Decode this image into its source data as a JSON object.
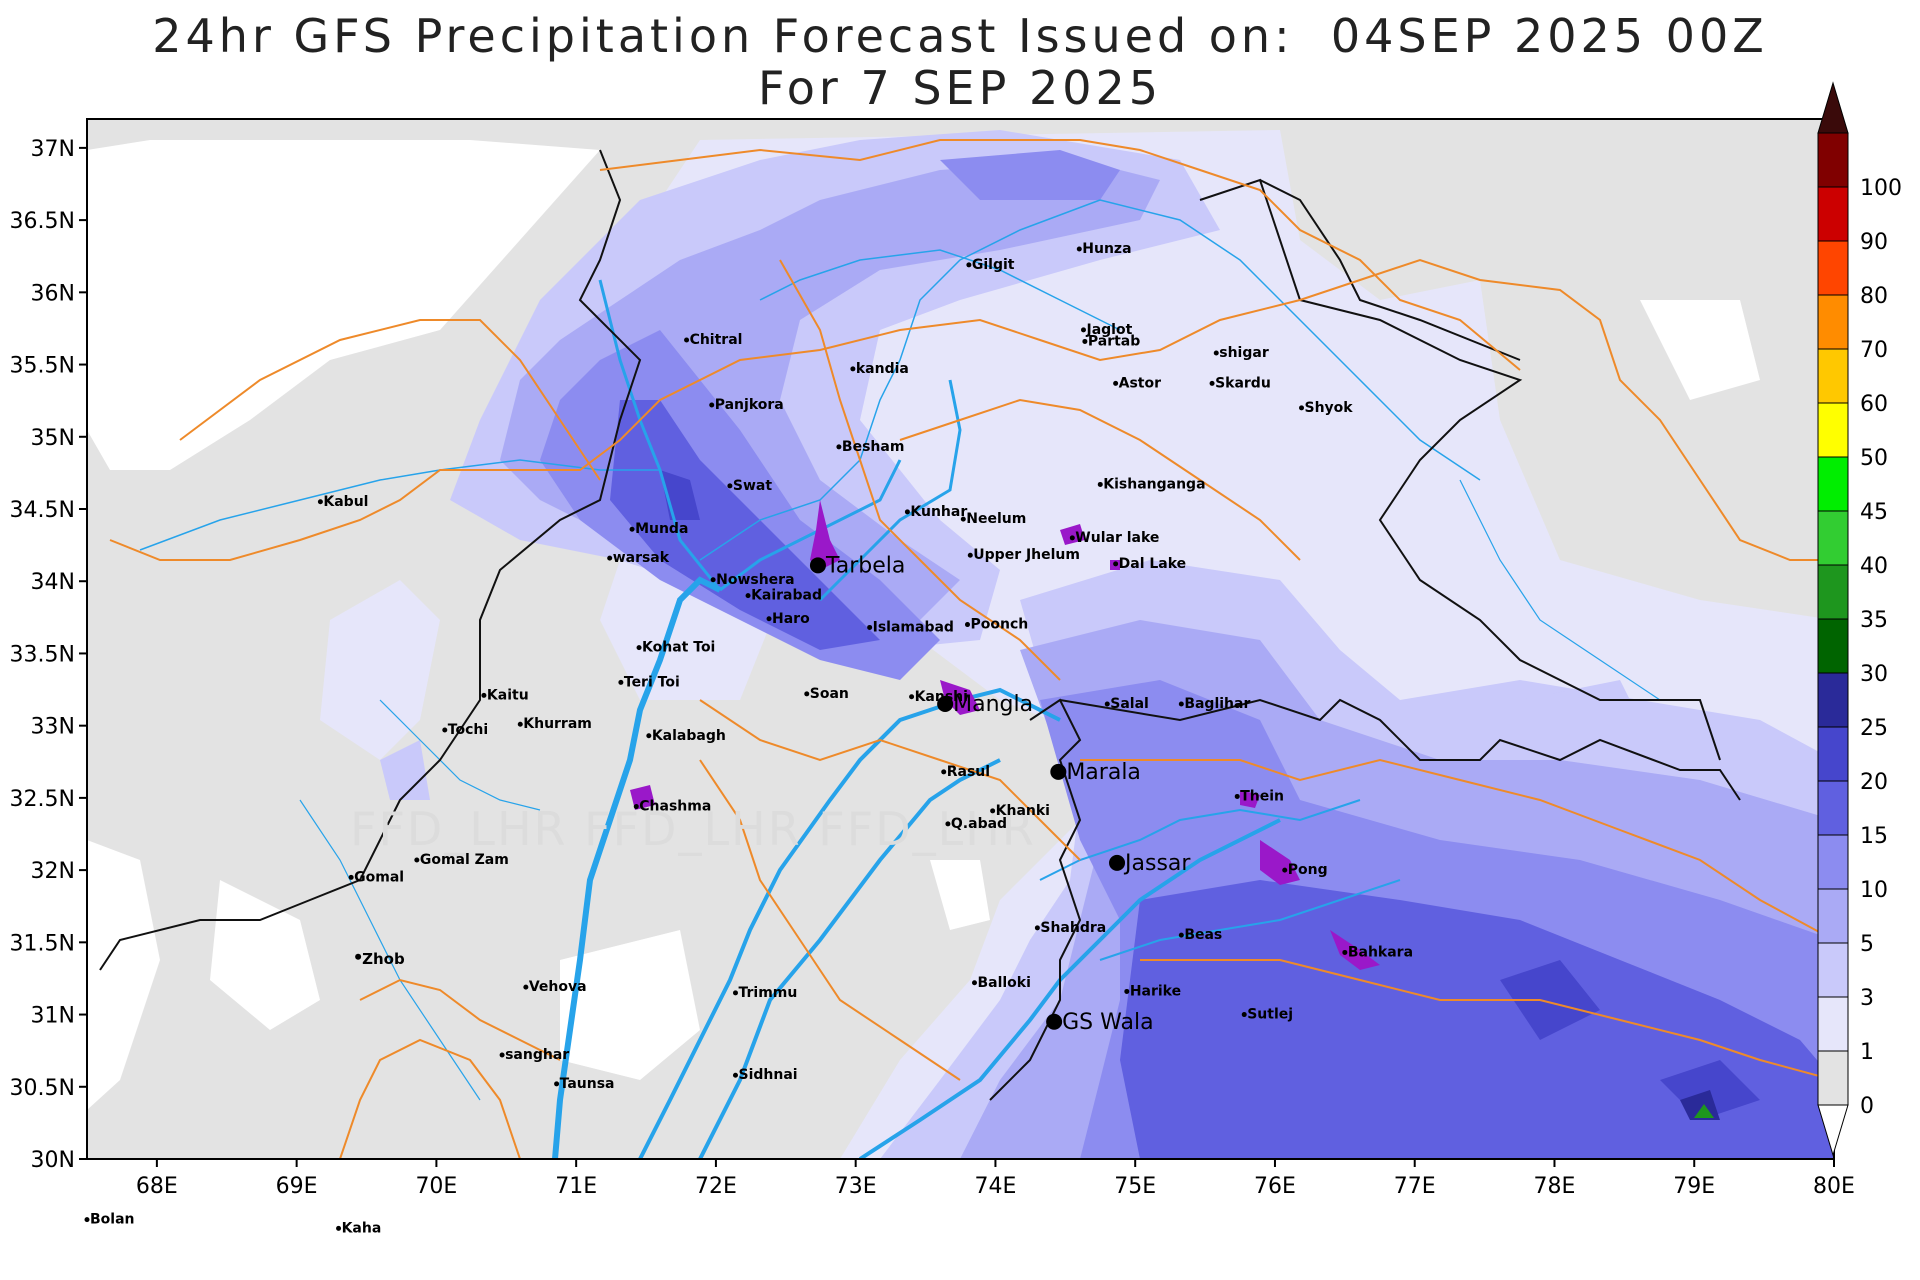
{
  "title": {
    "line1": "24hr GFS Precipitation Forecast Issued on:  04SEP 2025 00Z",
    "line2": "For 7 SEP 2025"
  },
  "watermark": "FFD_LHR FFD_LHR FFD_LHR",
  "axes": {
    "lon_ticks": [
      "68E",
      "69E",
      "70E",
      "71E",
      "72E",
      "73E",
      "74E",
      "75E",
      "76E",
      "77E",
      "78E",
      "79E",
      "80E"
    ],
    "lat_ticks": [
      "37N",
      "36.5N",
      "36N",
      "35.5N",
      "35N",
      "34.5N",
      "34N",
      "33.5N",
      "33N",
      "32.5N",
      "32N",
      "31.5N",
      "31N",
      "30.5N",
      "30N"
    ],
    "lon_range": [
      67.5,
      80
    ],
    "lat_range": [
      30,
      37.2
    ]
  },
  "colorbar": {
    "levels": [
      "0",
      "1",
      "3",
      "5",
      "10",
      "15",
      "20",
      "25",
      "30",
      "35",
      "40",
      "45",
      "50",
      "60",
      "70",
      "80",
      "90",
      "100"
    ],
    "colors": [
      "#e3e3e3",
      "#e6e6fa",
      "#c9c9fa",
      "#aaaaf5",
      "#8c8cf0",
      "#6060e0",
      "#4646cc",
      "#2a2a99",
      "#006400",
      "#1e961e",
      "#32cd32",
      "#00ee00",
      "#ffff00",
      "#ffc800",
      "#ff8c00",
      "#ff4500",
      "#cc0000",
      "#800000"
    ],
    "top_color": "#3a0a0a"
  },
  "stations": [
    {
      "name": "Chitral",
      "lon": 71.79,
      "lat": 35.67
    },
    {
      "name": "Panjkora",
      "lon": 71.97,
      "lat": 35.22
    },
    {
      "name": "Swat",
      "lon": 72.1,
      "lat": 34.66
    },
    {
      "name": "Munda",
      "lon": 71.4,
      "lat": 34.36
    },
    {
      "name": "warsak",
      "lon": 71.24,
      "lat": 34.16
    },
    {
      "name": "Nowshera",
      "lon": 71.98,
      "lat": 34.01
    },
    {
      "name": "Kairabad",
      "lon": 72.23,
      "lat": 33.9
    },
    {
      "name": "Haro",
      "lon": 72.38,
      "lat": 33.74
    },
    {
      "name": "Kohat Toi",
      "lon": 71.45,
      "lat": 33.54
    },
    {
      "name": "Teri Toi",
      "lon": 71.32,
      "lat": 33.3
    },
    {
      "name": "Kaitu",
      "lon": 70.34,
      "lat": 33.21
    },
    {
      "name": "Tochi",
      "lon": 70.06,
      "lat": 32.97
    },
    {
      "name": "Khurram",
      "lon": 70.6,
      "lat": 33.01
    },
    {
      "name": "Kalabagh",
      "lon": 71.52,
      "lat": 32.93
    },
    {
      "name": "Chashma",
      "lon": 71.43,
      "lat": 32.44
    },
    {
      "name": "Soan",
      "lon": 72.65,
      "lat": 33.22
    },
    {
      "name": "Kabul",
      "lon": 69.17,
      "lat": 34.55
    },
    {
      "name": "Gilgit",
      "lon": 73.81,
      "lat": 36.19
    },
    {
      "name": "Hunza",
      "lon": 74.6,
      "lat": 36.3
    },
    {
      "name": "kandia",
      "lon": 72.98,
      "lat": 35.47
    },
    {
      "name": "Besham",
      "lon": 72.88,
      "lat": 34.93
    },
    {
      "name": "Jaglot",
      "lon": 74.63,
      "lat": 35.74
    },
    {
      "name": "Partab",
      "lon": 74.64,
      "lat": 35.66
    },
    {
      "name": "shigar",
      "lon": 75.58,
      "lat": 35.58
    },
    {
      "name": "Astor",
      "lon": 74.86,
      "lat": 35.37
    },
    {
      "name": "Skardu",
      "lon": 75.55,
      "lat": 35.37
    },
    {
      "name": "Shyok",
      "lon": 76.19,
      "lat": 35.2
    },
    {
      "name": "Kishanganga",
      "lon": 74.75,
      "lat": 34.67
    },
    {
      "name": "Kunhar",
      "lon": 73.37,
      "lat": 34.48
    },
    {
      "name": "Neelum",
      "lon": 73.77,
      "lat": 34.43
    },
    {
      "name": "Wular lake",
      "lon": 74.55,
      "lat": 34.3
    },
    {
      "name": "Upper Jhelum",
      "lon": 73.82,
      "lat": 34.18
    },
    {
      "name": "Dal Lake",
      "lon": 74.86,
      "lat": 34.12
    },
    {
      "name": "Islamabad",
      "lon": 73.1,
      "lat": 33.68
    },
    {
      "name": "Poonch",
      "lon": 73.8,
      "lat": 33.7
    },
    {
      "name": "Kanshi",
      "lon": 73.4,
      "lat": 33.2
    },
    {
      "name": "Salal",
      "lon": 74.8,
      "lat": 33.15
    },
    {
      "name": "Baglihar",
      "lon": 75.33,
      "lat": 33.15
    },
    {
      "name": "Rasul",
      "lon": 73.63,
      "lat": 32.68
    },
    {
      "name": "Khanki",
      "lon": 73.98,
      "lat": 32.41
    },
    {
      "name": "Q.abad",
      "lon": 73.66,
      "lat": 32.32
    },
    {
      "name": "Thein",
      "lon": 75.73,
      "lat": 32.51
    },
    {
      "name": "Pong",
      "lon": 76.07,
      "lat": 32.0
    },
    {
      "name": "Gomal Zam",
      "lon": 69.86,
      "lat": 32.07
    },
    {
      "name": "Gomal",
      "lon": 69.39,
      "lat": 31.95
    },
    {
      "name": "Shahdra",
      "lon": 74.3,
      "lat": 31.6
    },
    {
      "name": "Beas",
      "lon": 75.33,
      "lat": 31.55
    },
    {
      "name": "Bahkara",
      "lon": 76.5,
      "lat": 31.43
    },
    {
      "name": "Vehova",
      "lon": 70.64,
      "lat": 31.19
    },
    {
      "name": "Trimmu",
      "lon": 72.14,
      "lat": 31.15
    },
    {
      "name": "Balloki",
      "lon": 73.85,
      "lat": 31.22
    },
    {
      "name": "Harike",
      "lon": 74.94,
      "lat": 31.16
    },
    {
      "name": "Sutlej",
      "lon": 75.78,
      "lat": 31.0
    },
    {
      "name": "sanghar",
      "lon": 70.47,
      "lat": 30.72
    },
    {
      "name": "Taunsa",
      "lon": 70.86,
      "lat": 30.52
    },
    {
      "name": "Sidhnai",
      "lon": 72.14,
      "lat": 30.58
    },
    {
      "name": "Bolan",
      "lon": 67.5,
      "lat": 29.58
    },
    {
      "name": "Kaha",
      "lon": 69.3,
      "lat": 29.52
    }
  ],
  "major_stations": [
    {
      "name": "Tarbela",
      "lon": 72.73,
      "lat": 34.11
    },
    {
      "name": "Mangla",
      "lon": 73.64,
      "lat": 33.15
    },
    {
      "name": "Marala",
      "lon": 74.45,
      "lat": 32.68
    },
    {
      "name": "Jassar",
      "lon": 74.87,
      "lat": 32.05
    },
    {
      "name": "GS Wala",
      "lon": 74.42,
      "lat": 30.95
    },
    {
      "name": "Zhob",
      "lon": 69.44,
      "lat": 31.4
    }
  ]
}
